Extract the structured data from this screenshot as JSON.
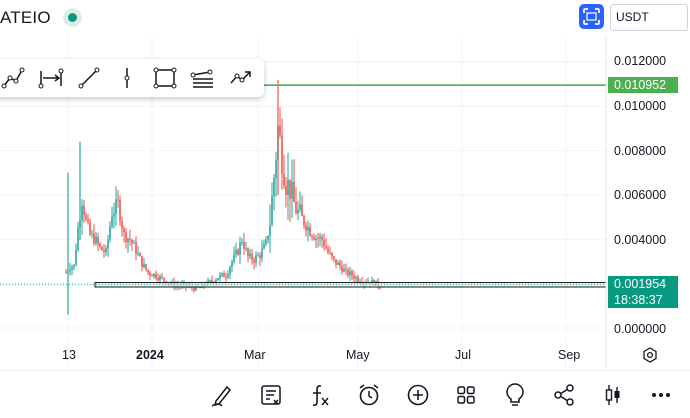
{
  "header": {
    "symbol": "ATEIO",
    "currency": "USDT",
    "fullscreen_icon": "fullscreen-icon",
    "status_color": "#089981"
  },
  "drawing_tools": [
    {
      "name": "polyline-tool-icon"
    },
    {
      "name": "date-range-tool-icon"
    },
    {
      "name": "trend-line-tool-icon"
    },
    {
      "name": "vertical-line-tool-icon"
    },
    {
      "name": "rectangle-tool-icon"
    },
    {
      "name": "fib-retracement-tool-icon"
    },
    {
      "name": "path-tool-icon"
    }
  ],
  "price_axis": {
    "labels": [
      "0.012000",
      "0.010000",
      "0.008000",
      "0.006000",
      "0.004000",
      "0.000000"
    ],
    "high_line_label": "0.010952",
    "current_price_label": "0.001954",
    "countdown": "18:38:37"
  },
  "time_axis": {
    "labels": [
      "13",
      "2024",
      "Mar",
      "May",
      "Jul",
      "Sep"
    ]
  },
  "bottom_toolbar": [
    {
      "name": "draw-icon"
    },
    {
      "name": "text-note-icon"
    },
    {
      "name": "function-icon"
    },
    {
      "name": "alarm-icon"
    },
    {
      "name": "add-icon"
    },
    {
      "name": "layout-grid-icon"
    },
    {
      "name": "idea-bulb-icon"
    },
    {
      "name": "share-icon"
    },
    {
      "name": "candles-icon"
    },
    {
      "name": "more-icon"
    }
  ],
  "colors": {
    "up": "#26a69a",
    "down": "#ef5350",
    "high_line": "#4caf50",
    "accent": "#2962ff"
  },
  "chart_data": {
    "type": "candlestick",
    "y_range": [
      0,
      0.012
    ],
    "high_level": 0.010952,
    "last_price": 0.001954,
    "support_zone": [
      0.00185,
      0.00205
    ]
  }
}
